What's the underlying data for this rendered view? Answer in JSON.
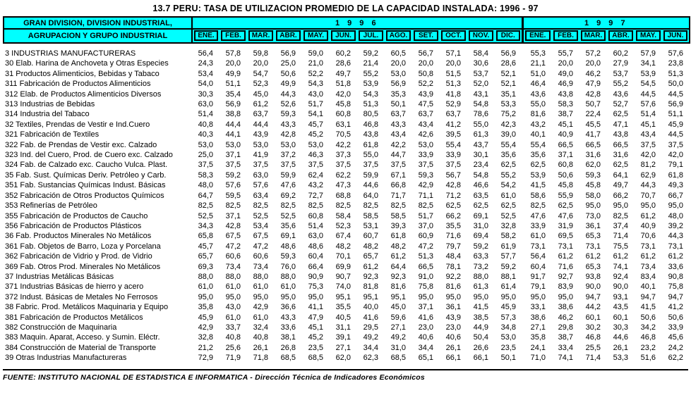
{
  "title": "13.7  PERU: TASA DE UTILIZACION PROMEDIO DE LA CAPACIDAD INSTALADA: 1996 - 97",
  "header": {
    "bg_color": "#00FFFF",
    "label_line1": "GRAN DIVISION, DIVISION INDUSTRIAL,",
    "label_line2": "AGRUPACION Y GRUPO INDUSTRIAL",
    "year_groups": [
      {
        "label": "1 9 9 6",
        "months": [
          "ENE.",
          "FEB.",
          "MAR.",
          "ABR.",
          "MAY.",
          "JUN.",
          "JUL.",
          "AGO.",
          "SET.",
          "OCT.",
          "NOV.",
          "DIC."
        ]
      },
      {
        "label": "1 9 9 7",
        "months": [
          "ENE.",
          "FEB.",
          "MAR.",
          "ABR.",
          "MAY.",
          "JUN."
        ]
      }
    ]
  },
  "rows": [
    {
      "label": "3 INDUSTRIAS MANUFACTURERAS",
      "values": [
        "56,4",
        "57,8",
        "59,8",
        "56,9",
        "59,0",
        "60,2",
        "59,2",
        "60,5",
        "56,7",
        "57,1",
        "58,4",
        "56,9",
        "55,3",
        "55,7",
        "57,2",
        "60,2",
        "57,9",
        "57,6"
      ]
    },
    {
      "label": "30 Elab. Harina de Anchoveta y Otras Especies",
      "values": [
        "24,3",
        "20,0",
        "20,0",
        "25,0",
        "21,0",
        "28,6",
        "21,4",
        "20,0",
        "20,0",
        "20,0",
        "30,6",
        "28,6",
        "21,1",
        "20,0",
        "20,0",
        "27,9",
        "34,1",
        "23,8"
      ]
    },
    {
      "label": "31 Productos Alimenticios, Bebidas y Tabaco",
      "values": [
        "53,4",
        "49,9",
        "54,7",
        "50,6",
        "52,2",
        "49,7",
        "55,2",
        "53,0",
        "50,8",
        "51,5",
        "53,7",
        "52,1",
        "51,0",
        "49,0",
        "46,2",
        "53,7",
        "53,9",
        "51,3"
      ]
    },
    {
      "label": "311 Fabricación de Productos Alimenticios",
      "values": [
        "54,0",
        "51,1",
        "52,3",
        "49,9",
        "54,3",
        "51,8",
        "53,9",
        "56,9",
        "52,2",
        "51,3",
        "52,0",
        "52,1",
        "46,4",
        "46,9",
        "47,9",
        "55,2",
        "54,5",
        "50,0"
      ]
    },
    {
      "label": "312 Elab. de Productos Alimenticios Diversos",
      "values": [
        "30,3",
        "35,4",
        "45,0",
        "44,3",
        "43,0",
        "42,0",
        "54,3",
        "35,3",
        "43,9",
        "41,8",
        "43,1",
        "35,1",
        "43,6",
        "43,8",
        "42,8",
        "43,6",
        "44,5",
        "44,5"
      ]
    },
    {
      "label": "313 Industrias de Bebidas",
      "values": [
        "63,0",
        "56,9",
        "61,2",
        "52,6",
        "51,7",
        "45,8",
        "51,3",
        "50,1",
        "47,5",
        "52,9",
        "54,8",
        "53,3",
        "55,0",
        "58,3",
        "50,7",
        "52,7",
        "57,6",
        "56,9"
      ]
    },
    {
      "label": "314 Industria del Tabaco",
      "values": [
        "51,4",
        "38,8",
        "63,7",
        "59,3",
        "54,1",
        "60,8",
        "80,5",
        "63,7",
        "63,7",
        "63,7",
        "78,6",
        "75,2",
        "81,6",
        "38,7",
        "22,4",
        "62,5",
        "51,4",
        "51,1"
      ]
    },
    {
      "label": "32 Textiles, Prendas de Vestir e Ind.Cuero",
      "values": [
        "40,8",
        "44,4",
        "44,4",
        "43,3",
        "45,7",
        "63,1",
        "46,8",
        "43,3",
        "43,4",
        "41,2",
        "55,0",
        "42,3",
        "43,2",
        "45,1",
        "45,5",
        "47,1",
        "45,1",
        "45,9"
      ]
    },
    {
      "label": "321 Fabricación de Textiles",
      "values": [
        "40,3",
        "44,1",
        "43,9",
        "42,8",
        "45,2",
        "70,5",
        "43,8",
        "43,4",
        "42,6",
        "39,5",
        "61,3",
        "39,0",
        "40,1",
        "40,9",
        "41,7",
        "43,8",
        "43,4",
        "44,5"
      ]
    },
    {
      "label": "322 Fab. de Prendas de Vestir exc. Calzado",
      "values": [
        "53,0",
        "53,0",
        "53,0",
        "53,0",
        "53,0",
        "42,2",
        "61,8",
        "42,2",
        "53,0",
        "55,4",
        "43,7",
        "55,4",
        "55,4",
        "66,5",
        "66,5",
        "66,5",
        "37,5",
        "37,5"
      ]
    },
    {
      "label": "323 Ind. del Cuero, Prod. de Cuero exc. Calzado",
      "values": [
        "25,0",
        "37,1",
        "41,9",
        "37,2",
        "46,3",
        "37,3",
        "55,0",
        "44,7",
        "33,9",
        "33,9",
        "30,1",
        "35,6",
        "35,6",
        "37,1",
        "31,6",
        "31,6",
        "42,0",
        "42,0"
      ]
    },
    {
      "label": "324 Fab. de Calzado exc. Caucho Vulca. Plast.",
      "values": [
        "37,5",
        "37,5",
        "37,5",
        "37,5",
        "37,5",
        "37,5",
        "37,5",
        "37,5",
        "37,5",
        "37,5",
        "23,4",
        "62,5",
        "62,5",
        "60,8",
        "62,0",
        "62,5",
        "81,2",
        "79,1"
      ]
    },
    {
      "label": "35 Fab. Sust. Químicas Deriv. Petróleo y Carb.",
      "values": [
        "58,3",
        "59,2",
        "63,0",
        "59,9",
        "62,4",
        "62,2",
        "59,9",
        "67,1",
        "59,3",
        "56,7",
        "54,8",
        "55,2",
        "53,9",
        "50,6",
        "59,3",
        "64,1",
        "62,9",
        "61,8"
      ]
    },
    {
      "label": "351 Fab. Sustancias Químicas Indust. Básicas",
      "values": [
        "48,0",
        "57,6",
        "57,6",
        "47,6",
        "43,2",
        "47,3",
        "44,6",
        "66,8",
        "42,9",
        "42,8",
        "46,6",
        "54,2",
        "41,5",
        "45,8",
        "45,8",
        "49,7",
        "44,3",
        "49,3"
      ]
    },
    {
      "label": "352 Fabricación de Otros Productos Químicos",
      "values": [
        "64,7",
        "59,5",
        "63,4",
        "69,2",
        "72,7",
        "68,8",
        "64,0",
        "71,7",
        "71,1",
        "71,2",
        "63,5",
        "61,0",
        "58,6",
        "55,9",
        "58,0",
        "66,2",
        "70,7",
        "66,7"
      ]
    },
    {
      "label": "353 Refinerías de Petróleo",
      "values": [
        "82,5",
        "82,5",
        "82,5",
        "82,5",
        "82,5",
        "82,5",
        "82,5",
        "82,5",
        "82,5",
        "62,5",
        "62,5",
        "62,5",
        "82,5",
        "62,5",
        "95,0",
        "95,0",
        "95,0",
        "95,0"
      ]
    },
    {
      "label": "355 Fabricación de Productos de Caucho",
      "values": [
        "52,5",
        "37,1",
        "52,5",
        "52,5",
        "60,8",
        "58,4",
        "58,5",
        "58,5",
        "51,7",
        "66,2",
        "69,1",
        "52,5",
        "47,6",
        "47,6",
        "73,0",
        "82,5",
        "61,2",
        "48,0"
      ]
    },
    {
      "label": "356 Fabricación de Productos Plásticos",
      "values": [
        "34,3",
        "42,8",
        "53,4",
        "35,6",
        "51,4",
        "52,3",
        "53,1",
        "39,3",
        "37,0",
        "35,5",
        "31,0",
        "32,8",
        "33,9",
        "31,9",
        "36,1",
        "37,4",
        "40,9",
        "39,2"
      ]
    },
    {
      "label": "36 Fab. Productos Minerales No Metálicos",
      "values": [
        "65,8",
        "67,5",
        "67,5",
        "69,1",
        "63,0",
        "67,4",
        "60,7",
        "61,8",
        "60,9",
        "71,6",
        "69,4",
        "58,2",
        "61,0",
        "69,5",
        "65,3",
        "71,4",
        "70,6",
        "44,3"
      ]
    },
    {
      "label": "361 Fab. Objetos de Barro, Loza y Porcelana",
      "values": [
        "45,7",
        "47,2",
        "47,2",
        "48,6",
        "48,6",
        "48,2",
        "48,2",
        "48,2",
        "47,2",
        "79,7",
        "59,2",
        "61,9",
        "73,1",
        "73,1",
        "73,1",
        "75,5",
        "73,1",
        "73,1"
      ]
    },
    {
      "label": "362 Fabricación de Vidrio y Prod. de Vidrio",
      "values": [
        "65,7",
        "60,6",
        "60,6",
        "59,3",
        "60,4",
        "70,1",
        "65,7",
        "61,2",
        "51,3",
        "48,4",
        "63,3",
        "57,7",
        "56,4",
        "61,2",
        "61,2",
        "61,2",
        "61,2",
        "61,2"
      ]
    },
    {
      "label": "369 Fab. Otros Prod. Minerales No Metálicos",
      "values": [
        "69,3",
        "73,4",
        "73,4",
        "76,0",
        "66,4",
        "69,9",
        "61,2",
        "64,4",
        "66,5",
        "78,1",
        "73,2",
        "59,2",
        "60,4",
        "71,6",
        "65,3",
        "74,1",
        "73,4",
        "33,6"
      ]
    },
    {
      "label": "37 Industrias Metálicas Básicas",
      "values": [
        "88,0",
        "88,0",
        "88,0",
        "88,0",
        "90,9",
        "90,7",
        "92,3",
        "92,3",
        "91,0",
        "92,2",
        "88,0",
        "88,1",
        "91,7",
        "92,7",
        "93,8",
        "92,4",
        "83,4",
        "90,8"
      ]
    },
    {
      "label": "371 Industrias Básicas de hierro y acero",
      "values": [
        "61,0",
        "61,0",
        "61,0",
        "61,0",
        "75,3",
        "74,0",
        "81,8",
        "81,6",
        "75,8",
        "81,6",
        "61,3",
        "61,4",
        "79,1",
        "83,9",
        "90,0",
        "90,0",
        "40,1",
        "75,8"
      ]
    },
    {
      "label": "372 Indust. Básicas de Metales No Ferrosos",
      "values": [
        "95,0",
        "95,0",
        "95,0",
        "95,0",
        "95,0",
        "95,1",
        "95,1",
        "95,1",
        "95,0",
        "95,0",
        "95,0",
        "95,0",
        "95,0",
        "95,0",
        "94,7",
        "93,1",
        "94,7",
        "94,7"
      ]
    },
    {
      "label": "38 Fabric. Prod. Metálicos Maquinaria y Equipo",
      "values": [
        "35,8",
        "43,0",
        "42,9",
        "36,6",
        "41,1",
        "35,5",
        "40,0",
        "45,0",
        "37,1",
        "36,1",
        "41,5",
        "45,9",
        "33,1",
        "38,6",
        "44,2",
        "43,5",
        "41,5",
        "41,2"
      ]
    },
    {
      "label": "381 Fabricación de Productos Metálicos",
      "values": [
        "45,9",
        "61,0",
        "61,0",
        "43,3",
        "47,9",
        "40,5",
        "41,6",
        "59,6",
        "41,6",
        "43,9",
        "38,5",
        "57,3",
        "38,6",
        "46,2",
        "60,1",
        "60,1",
        "50,6",
        "50,6"
      ]
    },
    {
      "label": "382 Construcción de Maquinaria",
      "values": [
        "42,9",
        "33,7",
        "32,4",
        "33,6",
        "45,1",
        "31,1",
        "29,5",
        "27,1",
        "23,0",
        "23,0",
        "44,9",
        "34,8",
        "27,1",
        "29,8",
        "30,2",
        "30,3",
        "34,2",
        "33,9"
      ]
    },
    {
      "label": "383 Maquin. Aparat, Acceso. y Sumin. Eléctr.",
      "values": [
        "32,8",
        "40,8",
        "40,8",
        "38,1",
        "45,2",
        "39,1",
        "49,2",
        "49,2",
        "40,6",
        "40,6",
        "50,4",
        "53,0",
        "35,8",
        "38,7",
        "46,8",
        "44,6",
        "46,8",
        "45,6"
      ]
    },
    {
      "label": "384 Construcción de Material de Transporte",
      "values": [
        "21,2",
        "25,6",
        "26,1",
        "26,8",
        "23,5",
        "27,1",
        "34,4",
        "31,0",
        "34,4",
        "26,1",
        "26,6",
        "23,5",
        "24,1",
        "33,4",
        "25,5",
        "26,1",
        "23,2",
        "24,2"
      ]
    },
    {
      "label": "39 Otras Industrias Manufactureras",
      "values": [
        "72,9",
        "71,9",
        "71,8",
        "68,5",
        "68,5",
        "62,0",
        "62,3",
        "68,5",
        "65,1",
        "66,1",
        "66,1",
        "50,1",
        "71,0",
        "74,1",
        "71,4",
        "53,3",
        "51,6",
        "62,2"
      ]
    }
  ],
  "footer": "FUENTE: INSTITUTO NACIONAL DE ESTADISTICA E INFORMATICA - Dirección Técnica de Indicadores Económicos"
}
